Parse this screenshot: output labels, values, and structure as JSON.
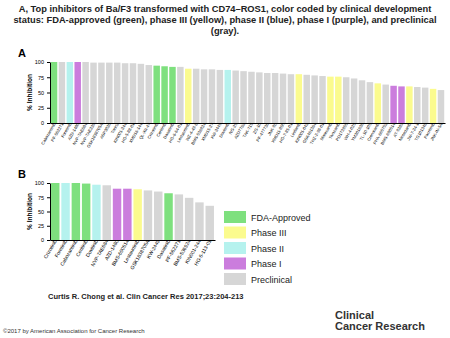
{
  "title": "A, Top inhibitors of Ba/F3 transformed with CD74–ROS1, color coded by clinical development status: FDA-approved (green), phase III (yellow), phase II (blue), phase I (purple), and preclinical (gray).",
  "chart_data": [
    {
      "type": "bar",
      "panel": "A",
      "y_label": "% Inhibition",
      "categories": [
        "Cabozantinib",
        "PF-562271",
        "Foretinib",
        "AZD-1480",
        "NVP-TAE684",
        "NVP-TAE226",
        "GSK1838705A",
        "ASP3026",
        "Torin2",
        "KIN001-244",
        "HG-5-88-01",
        "XMD16-144",
        "QL-XII-47",
        "Crizotinib",
        "Ceritinib",
        "Dasatinib",
        "HG-6-64-01",
        "Lestaurtinib",
        "WZ-4-49-8",
        "BMS-536924",
        "XMD15-27",
        "KW-2449",
        "Dovitinib",
        "NG-25",
        "AZD7762",
        "TAK-715",
        "ZG-10",
        "PF-477736",
        "JNK-9L",
        "XMD11-85h",
        "HG-7-85-01",
        "Linifanib",
        "KIN001-042",
        "GSK461364",
        "THZ-2-98-01",
        "Motesanib",
        "Tivozanib",
        "PD173955",
        "WH-4-025",
        "YM201636",
        "TL-10-105",
        "Crenolanib",
        "PHA-665752",
        "BMS-690514",
        "AT-9283",
        "Nintedanib",
        "JW-7-24-1",
        "TG101348",
        "Pacritinib",
        "JNK-IN-5A"
      ],
      "values": [
        100,
        100,
        100,
        100,
        100,
        99,
        99,
        99,
        99,
        98,
        98,
        97,
        95,
        94,
        93,
        92,
        92,
        89,
        89,
        88,
        88,
        87,
        87,
        86,
        85,
        84,
        83,
        82,
        82,
        81,
        80,
        80,
        79,
        78,
        77,
        76,
        76,
        75,
        73,
        70,
        67,
        65,
        63,
        61,
        60,
        60,
        59,
        58,
        56,
        54
      ],
      "colors": [
        "#7ee07e",
        "#d6d6d6",
        "#b5f2ee",
        "#cb7ddd",
        "#d6d6d6",
        "#d6d6d6",
        "#d6d6d6",
        "#d6d6d6",
        "#d6d6d6",
        "#d6d6d6",
        "#d6d6d6",
        "#d6d6d6",
        "#d6d6d6",
        "#7ee07e",
        "#7ee07e",
        "#7ee07e",
        "#d6d6d6",
        "#fbfb8e",
        "#d6d6d6",
        "#d6d6d6",
        "#d6d6d6",
        "#d6d6d6",
        "#b5f2ee",
        "#d6d6d6",
        "#d6d6d6",
        "#d6d6d6",
        "#d6d6d6",
        "#d6d6d6",
        "#d6d6d6",
        "#d6d6d6",
        "#d6d6d6",
        "#fbfb8e",
        "#d6d6d6",
        "#d6d6d6",
        "#d6d6d6",
        "#fbfb8e",
        "#fbfb8e",
        "#d6d6d6",
        "#d6d6d6",
        "#d6d6d6",
        "#d6d6d6",
        "#fbfb8e",
        "#d6d6d6",
        "#cb7ddd",
        "#cb7ddd",
        "#fbfb8e",
        "#d6d6d6",
        "#d6d6d6",
        "#fbfb8e",
        "#d6d6d6"
      ],
      "ylim": [
        0,
        100
      ],
      "yticks": [
        0,
        25,
        50,
        75,
        100
      ]
    },
    {
      "type": "bar",
      "panel": "B",
      "y_label": "% Inhibition",
      "categories": [
        "Crizotinib",
        "Foretinib",
        "Cabozantinib",
        "Ceritinib",
        "Dovitinib",
        "NVP-TAE684",
        "AZD-1480",
        "BMS-690514",
        "Lestaurtinib",
        "GSK1838705A",
        "KW-2449",
        "Dasatinib",
        "PF-562271",
        "BMS-536924",
        "KIN001-244",
        "HG-5-113-01"
      ],
      "values": [
        100,
        100,
        100,
        99,
        97,
        96,
        90,
        90,
        89,
        87,
        85,
        82,
        80,
        74,
        66,
        60
      ],
      "colors": [
        "#7ee07e",
        "#b5f2ee",
        "#7ee07e",
        "#7ee07e",
        "#b5f2ee",
        "#d6d6d6",
        "#cb7ddd",
        "#cb7ddd",
        "#fbfb8e",
        "#d6d6d6",
        "#d6d6d6",
        "#7ee07e",
        "#d6d6d6",
        "#d6d6d6",
        "#d6d6d6",
        "#d6d6d6"
      ],
      "ylim": [
        0,
        100
      ],
      "yticks": [
        0,
        25,
        50,
        75,
        100
      ]
    }
  ],
  "status_key": [
    {
      "name": "FDA-Approved",
      "color": "#7ee07e"
    },
    {
      "name": "Phase III",
      "color": "#fbfb8e"
    },
    {
      "name": "Phase II",
      "color": "#b5f2ee"
    },
    {
      "name": "Phase I",
      "color": "#cb7ddd"
    },
    {
      "name": "Preclinical",
      "color": "#d6d6d6"
    }
  ],
  "citation": "Curtis R. Chong et al. Clin Cancer Res 2017;23:204-213",
  "copyright": "©2017 by American Association for Cancer Research",
  "journal": [
    "Clinical",
    "Cancer Research"
  ]
}
